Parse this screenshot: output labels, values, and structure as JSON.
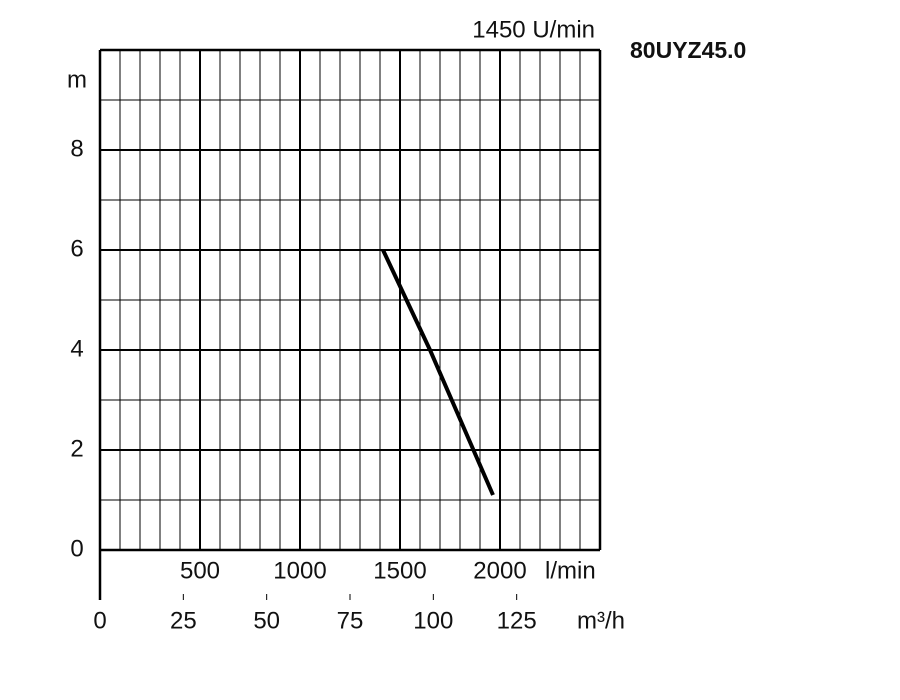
{
  "chart_data": {
    "type": "line",
    "title": "80UYZ45.0",
    "subtitle": "1450 U/min",
    "ylabel": "m",
    "xlabel": "l/min",
    "x2label": "m³/h",
    "xlim": [
      0,
      2500
    ],
    "xticks": [
      500,
      1000,
      1500,
      2000
    ],
    "x2lim": [
      0,
      150
    ],
    "x2ticks": [
      0,
      25,
      50,
      75,
      100,
      125
    ],
    "ylim": [
      0,
      10
    ],
    "yticks": [
      0,
      2,
      4,
      6,
      8
    ],
    "grid": true,
    "series": [
      {
        "color": "#000000",
        "x": [
          1415,
          1650,
          1965
        ],
        "values": [
          6,
          4,
          1.1
        ]
      }
    ]
  }
}
